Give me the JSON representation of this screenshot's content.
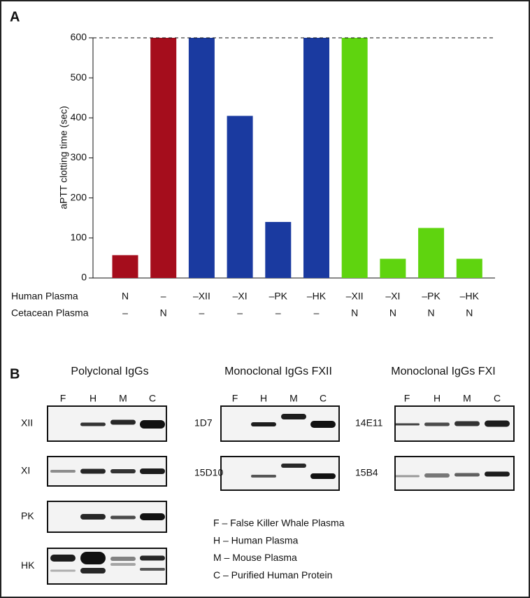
{
  "chart_data": {
    "type": "bar",
    "panel_label": "A",
    "ylabel": "aPTT clotting time (sec)",
    "category_rows": [
      {
        "name": "Human Plasma",
        "labels": [
          "N",
          "–",
          "–XII",
          "–XI",
          "–PK",
          "–HK",
          "–XII",
          "–XI",
          "–PK",
          "–HK"
        ]
      },
      {
        "name": "Cetacean Plasma",
        "labels": [
          "–",
          "N",
          "–",
          "–",
          "–",
          "–",
          "N",
          "N",
          "N",
          "N"
        ]
      }
    ],
    "values": [
      57,
      600,
      600,
      405,
      140,
      600,
      600,
      48,
      125,
      48
    ],
    "colors": [
      "#a50d1c",
      "#a50d1c",
      "#1a3aa0",
      "#1a3aa0",
      "#1a3aa0",
      "#1a3aa0",
      "#5fd40f",
      "#5fd40f",
      "#5fd40f",
      "#5fd40f"
    ],
    "ylim": [
      0,
      600
    ],
    "yticks": [
      0,
      100,
      200,
      300,
      400,
      500,
      600
    ],
    "reference_line": 600
  },
  "panel_b": {
    "label": "B",
    "groups": [
      {
        "title": "Polyclonal IgGs",
        "lanes": [
          "F",
          "H",
          "M",
          "C"
        ],
        "blots": [
          "XII",
          "XI",
          "PK",
          "HK"
        ]
      },
      {
        "title": "Monoclonal IgGs FXII",
        "lanes": [
          "F",
          "H",
          "M",
          "C"
        ],
        "blots": [
          "1D7",
          "15D10"
        ]
      },
      {
        "title": "Monoclonal IgGs FXI",
        "lanes": [
          "F",
          "H",
          "M",
          "C"
        ],
        "blots": [
          "14E11",
          "15B4"
        ]
      }
    ],
    "legend": [
      "F – False Killer Whale Plasma",
      "H – Human Plasma",
      "M – Mouse Plasma",
      "C – Purified Human Protein"
    ]
  }
}
